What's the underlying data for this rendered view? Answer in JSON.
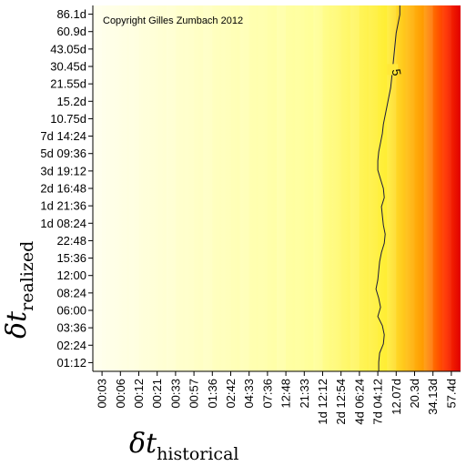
{
  "chart_data": {
    "type": "heatmap",
    "annotation": "Copyright Gilles Zumbach 2012",
    "xlabel": {
      "symbol": "δt",
      "subscript": "historical"
    },
    "ylabel": {
      "symbol": "δt",
      "subscript": "realized"
    },
    "x_ticks": [
      "00:03",
      "00:06",
      "00:12",
      "00:21",
      "00:33",
      "00:57",
      "01:36",
      "02:42",
      "04:33",
      "07:36",
      "12:48",
      "21:33",
      "1d 12:12",
      "2d 12:54",
      "4d 06:24",
      "7d 04:12",
      "12.07d",
      "20.3d",
      "34.13d",
      "57.4d"
    ],
    "y_ticks": [
      "01:12",
      "02:24",
      "03:36",
      "06:00",
      "08:24",
      "12:00",
      "15:36",
      "22:48",
      "1d 08:24",
      "1d 21:36",
      "2d 16:48",
      "3d 19:12",
      "5d 09:36",
      "7d 14:24",
      "10.75d",
      "15.2d",
      "21.55d",
      "30.45d",
      "43.05d",
      "60.9d",
      "86.1d"
    ],
    "colormap": [
      "#ffffee",
      "#ffff99",
      "#ffee33",
      "#ff9900",
      "#ff3300",
      "#e00000"
    ],
    "contour": {
      "level_label": "5",
      "x_by_row": [
        16.2,
        16.2,
        16.1,
        16.0,
        15.95,
        15.9,
        15.85,
        15.8,
        15.75,
        15.7,
        15.6,
        15.5,
        15.4,
        15.3,
        15.25,
        15.15,
        15.05,
        15.0,
        15.0,
        15.15,
        15.3,
        15.35,
        15.2,
        15.25,
        15.3,
        15.4,
        15.35,
        15.2,
        15.1,
        15.05,
        15.0,
        14.9,
        15.05,
        15.15,
        15.0,
        15.25,
        15.35,
        15.3,
        15.1,
        15.05,
        15.05
      ]
    }
  }
}
